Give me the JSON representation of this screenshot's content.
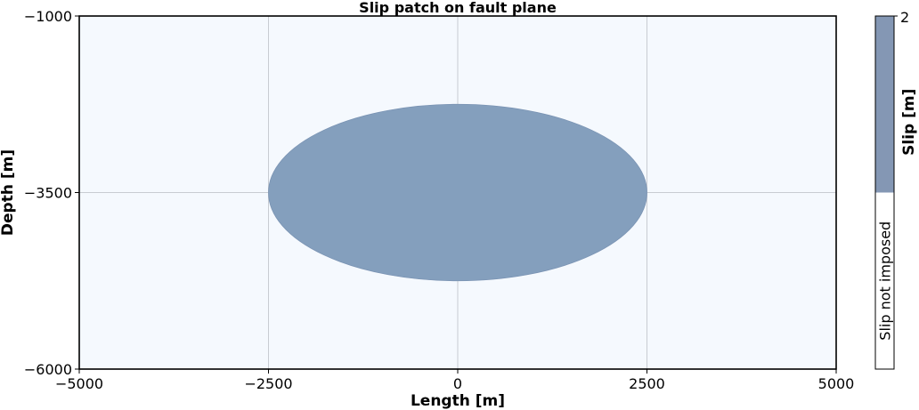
{
  "chart_data": {
    "type": "heatmap",
    "title": "Slip patch on fault plane",
    "xlabel": "Length [m]",
    "ylabel": "Depth [m]",
    "xlim": [
      -5000,
      5000
    ],
    "ylim": [
      -6000,
      -1000
    ],
    "xticks": [
      -5000,
      -2500,
      0,
      2500,
      5000
    ],
    "xtick_labels": [
      "−5000",
      "−2500",
      "0",
      "2500",
      "5000"
    ],
    "yticks": [
      -1000,
      -3500,
      -6000
    ],
    "ytick_labels": [
      "−1000",
      "−3500",
      "−6000"
    ],
    "grid": true,
    "background_color": "#f5f9fe",
    "patch": {
      "shape": "ellipse",
      "center_x": 0,
      "center_y": -3500,
      "semi_axis_x": 2500,
      "semi_axis_y": 1250,
      "slip": 2,
      "color": "#849fbd"
    },
    "colorbar": {
      "label": "Slip [m]",
      "max_tick": 2,
      "max_tick_label": "2",
      "filled_color": "#8497b4",
      "note": "Slip not imposed",
      "filled_fraction": 0.5
    }
  }
}
